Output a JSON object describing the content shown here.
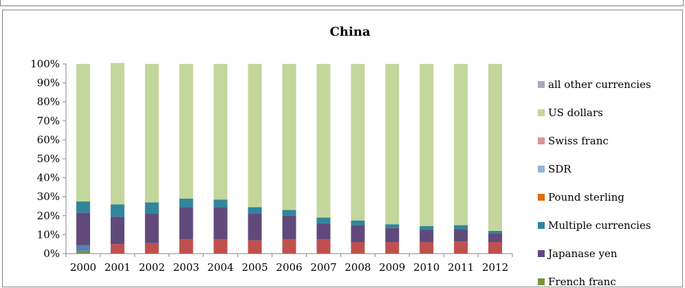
{
  "chart_data": {
    "type": "bar",
    "stacked": true,
    "percent": true,
    "title": "China",
    "xlabel": "",
    "ylabel": "",
    "ylim": [
      0,
      100
    ],
    "yticks": [
      "0%",
      "10%",
      "20%",
      "30%",
      "40%",
      "50%",
      "60%",
      "70%",
      "80%",
      "90%",
      "100%"
    ],
    "grid": false,
    "legend_position": "right",
    "categories": [
      "2000",
      "2001",
      "2002",
      "2003",
      "2004",
      "2005",
      "2006",
      "2007",
      "2008",
      "2009",
      "2010",
      "2011",
      "2012"
    ],
    "series": [
      {
        "name": "French franc",
        "color": "#77933c",
        "values": [
          1.5,
          0,
          0,
          0,
          0,
          0,
          0,
          0,
          0,
          0,
          0,
          0,
          0
        ]
      },
      {
        "name": "Japanase yen",
        "color": "#604a7b",
        "values": [
          17,
          14.5,
          15.5,
          17,
          17,
          14,
          12.5,
          8.5,
          9,
          7.5,
          6.5,
          6.5,
          4.5
        ]
      },
      {
        "name": "Multiple currencies",
        "color": "#31859c",
        "values": [
          6,
          6.5,
          6,
          4.5,
          4,
          3.5,
          3,
          3,
          2.5,
          2,
          2,
          2,
          1.5
        ]
      },
      {
        "name": "Pound sterling",
        "color": "#e46c0a",
        "values": [
          0,
          0,
          0,
          0,
          0,
          0,
          0,
          0,
          0,
          0,
          0,
          0,
          0
        ]
      },
      {
        "name": "SDR",
        "color": "#95b3d7",
        "values": [
          0,
          0,
          0,
          0,
          0,
          0,
          0,
          0,
          0,
          0,
          0,
          0,
          0
        ]
      },
      {
        "name": "Swiss franc",
        "color": "#d99694",
        "values": [
          0,
          0,
          0,
          0,
          0,
          0,
          0,
          0,
          0,
          0,
          0,
          0,
          0
        ]
      },
      {
        "name": "US dollars",
        "color": "#c3d69b",
        "values": [
          72.5,
          74.5,
          73,
          71,
          71.5,
          75.5,
          77,
          81,
          82.5,
          84.5,
          85.5,
          85,
          88
        ]
      },
      {
        "name": "all other currencies",
        "color": "#b3a2c7",
        "values": [
          0,
          0,
          0,
          0,
          0,
          0,
          0,
          0,
          0,
          0,
          0,
          0,
          0
        ]
      }
    ],
    "base_series": {
      "color": "#c0504d",
      "values": [
        0.5,
        5,
        5.5,
        7.5,
        7.5,
        7,
        7.5,
        7.5,
        6,
        6,
        6,
        6.5,
        6
      ]
    },
    "extra_series": {
      "color": "#4f81bd",
      "values": [
        2.5,
        0,
        0,
        0,
        0,
        0,
        0,
        0,
        0,
        0,
        0,
        0,
        0
      ]
    }
  }
}
